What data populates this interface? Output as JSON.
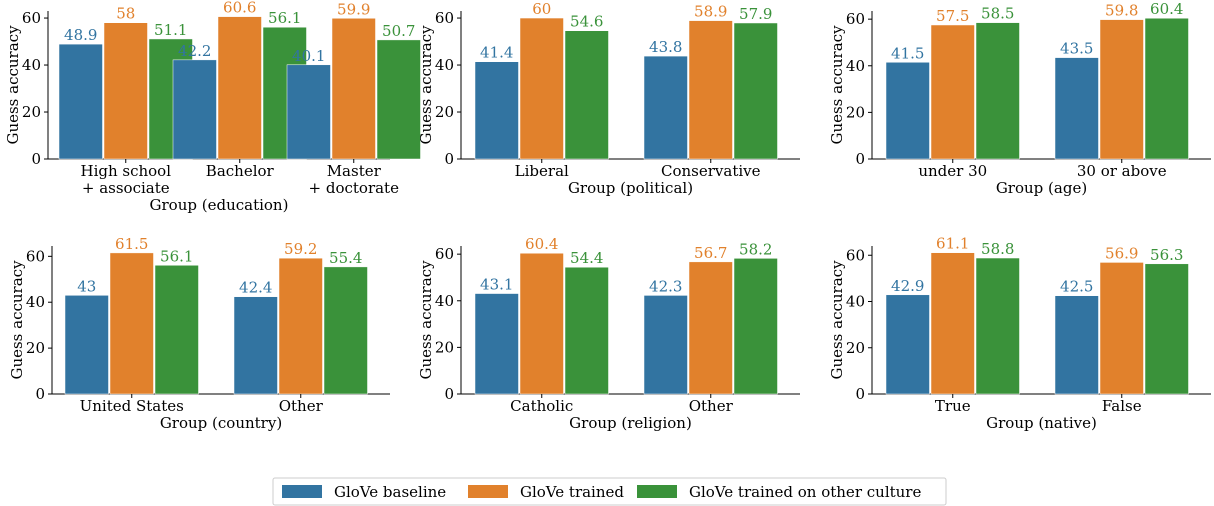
{
  "colors": {
    "baseline": "#3274a1",
    "trained": "#e1812c",
    "other_culture": "#3a923a",
    "axis": "#000000"
  },
  "legend": {
    "placement": "bottom-center",
    "entries": [
      "GloVe baseline",
      "GloVe trained",
      "GloVe trained on other culture"
    ]
  },
  "chart_data": [
    {
      "type": "bar",
      "xlabel": "Group (education)",
      "ylabel": "Guess accuracy",
      "ylim": [
        0,
        63
      ],
      "yticks": [
        0,
        20,
        40,
        60
      ],
      "categories": [
        [
          "High school",
          "+ associate"
        ],
        [
          "Bachelor"
        ],
        [
          "Master",
          "+ doctorate"
        ]
      ],
      "series": [
        {
          "name": "GloVe baseline",
          "values": [
            48.9,
            42.2,
            40.1
          ]
        },
        {
          "name": "GloVe trained",
          "values": [
            58,
            60.6,
            59.9
          ]
        },
        {
          "name": "GloVe trained on other culture",
          "values": [
            51.1,
            56.1,
            50.7
          ]
        }
      ]
    },
    {
      "type": "bar",
      "xlabel": "Group (political)",
      "ylabel": "Guess accuracy",
      "ylim": [
        0,
        63
      ],
      "yticks": [
        0,
        20,
        40,
        60
      ],
      "categories": [
        [
          "Liberal"
        ],
        [
          "Conservative"
        ]
      ],
      "series": [
        {
          "name": "GloVe baseline",
          "values": [
            41.4,
            43.8
          ]
        },
        {
          "name": "GloVe trained",
          "values": [
            60,
            58.9
          ]
        },
        {
          "name": "GloVe trained on other culture",
          "values": [
            54.6,
            57.9
          ]
        }
      ]
    },
    {
      "type": "bar",
      "xlabel": "Group (age)",
      "ylabel": "Guess accuracy",
      "ylim": [
        0,
        63.5
      ],
      "yticks": [
        0,
        20,
        40,
        60
      ],
      "categories": [
        [
          "under 30"
        ],
        [
          "30 or above"
        ]
      ],
      "series": [
        {
          "name": "GloVe baseline",
          "values": [
            41.5,
            43.5
          ]
        },
        {
          "name": "GloVe trained",
          "values": [
            57.5,
            59.8
          ]
        },
        {
          "name": "GloVe trained on other culture",
          "values": [
            58.5,
            60.4
          ]
        }
      ]
    },
    {
      "type": "bar",
      "xlabel": "Group (country)",
      "ylabel": "Guess accuracy",
      "ylim": [
        0,
        64.5
      ],
      "yticks": [
        0,
        20,
        40,
        60
      ],
      "categories": [
        [
          "United States"
        ],
        [
          "Other"
        ]
      ],
      "series": [
        {
          "name": "GloVe baseline",
          "values": [
            43,
            42.4
          ]
        },
        {
          "name": "GloVe trained",
          "values": [
            61.5,
            59.2
          ]
        },
        {
          "name": "GloVe trained on other culture",
          "values": [
            56.1,
            55.4
          ]
        }
      ]
    },
    {
      "type": "bar",
      "xlabel": "Group (religion)",
      "ylabel": "Guess accuracy",
      "ylim": [
        0,
        63.5
      ],
      "yticks": [
        0,
        20,
        40,
        60
      ],
      "categories": [
        [
          "Catholic"
        ],
        [
          "Other"
        ]
      ],
      "series": [
        {
          "name": "GloVe baseline",
          "values": [
            43.1,
            42.3
          ]
        },
        {
          "name": "GloVe trained",
          "values": [
            60.4,
            56.7
          ]
        },
        {
          "name": "GloVe trained on other culture",
          "values": [
            54.4,
            58.2
          ]
        }
      ]
    },
    {
      "type": "bar",
      "xlabel": "Group (native)",
      "ylabel": "Guess accuracy",
      "ylim": [
        0,
        64
      ],
      "yticks": [
        0,
        20,
        40,
        60
      ],
      "categories": [
        [
          "True"
        ],
        [
          "False"
        ]
      ],
      "series": [
        {
          "name": "GloVe baseline",
          "values": [
            42.9,
            42.5
          ]
        },
        {
          "name": "GloVe trained",
          "values": [
            61.1,
            56.9
          ]
        },
        {
          "name": "GloVe trained on other culture",
          "values": [
            58.8,
            56.3
          ]
        }
      ]
    }
  ]
}
